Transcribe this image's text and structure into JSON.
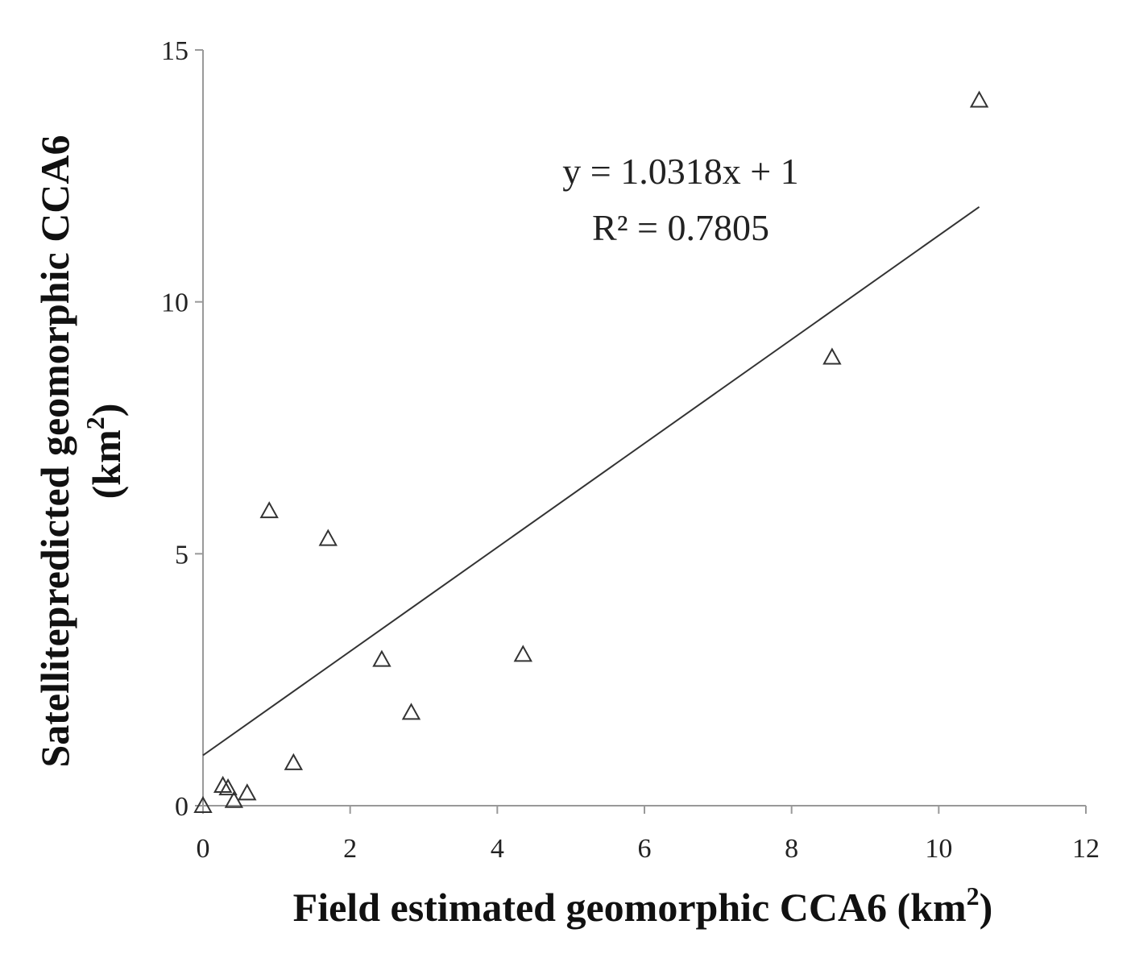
{
  "chart_data": {
    "type": "scatter",
    "xlabel": "Field estimated geomorphic  CCA6 (km",
    "xlabel_sup": "2",
    "xlabel_end": ")",
    "ylabel_line1": "Satellitepredicted geomorphic  CCA6",
    "ylabel_line2_pre": "(km",
    "ylabel_line2_sup": "2",
    "ylabel_line2_end": ")",
    "xlim": [
      0,
      12
    ],
    "ylim": [
      0,
      15
    ],
    "xticks": [
      0,
      2,
      4,
      6,
      8,
      10,
      12
    ],
    "yticks": [
      0,
      5,
      10,
      15
    ],
    "marker": "open-triangle",
    "colors": {
      "marker": "#333333",
      "axis": "#999999",
      "trendline": "#333333"
    },
    "points": [
      {
        "x": 0.0,
        "y": 0.0
      },
      {
        "x": 0.27,
        "y": 0.4
      },
      {
        "x": 0.34,
        "y": 0.35
      },
      {
        "x": 0.42,
        "y": 0.1
      },
      {
        "x": 0.6,
        "y": 0.25
      },
      {
        "x": 0.9,
        "y": 5.85
      },
      {
        "x": 1.23,
        "y": 0.85
      },
      {
        "x": 1.7,
        "y": 5.3
      },
      {
        "x": 2.43,
        "y": 2.9
      },
      {
        "x": 2.83,
        "y": 1.85
      },
      {
        "x": 4.35,
        "y": 3.0
      },
      {
        "x": 8.55,
        "y": 8.9
      },
      {
        "x": 10.55,
        "y": 14.0
      }
    ],
    "trendline": {
      "slope": 1.0318,
      "intercept": 1,
      "x_range": [
        0,
        10.55
      ]
    },
    "equation": "y = 1.0318x  + 1",
    "r_squared_label": "R² = 0.7805"
  }
}
